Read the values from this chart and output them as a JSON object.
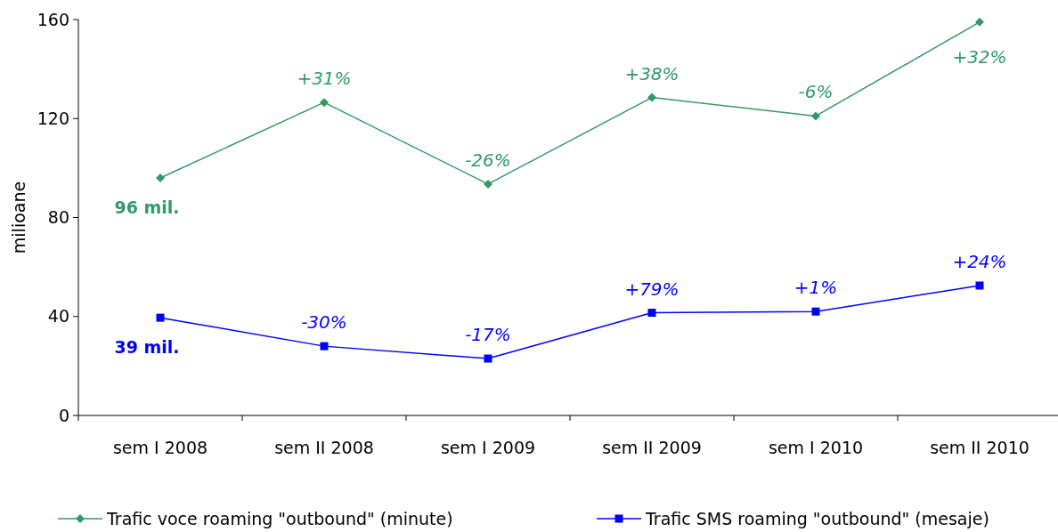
{
  "chart_data": {
    "type": "line",
    "ylabel": "milioane",
    "categories": [
      "sem I 2008",
      "sem II 2008",
      "sem I 2009",
      "sem II 2009",
      "sem I 2010",
      "sem II 2010"
    ],
    "ylim": [
      0,
      160
    ],
    "yticks": [
      0,
      40,
      80,
      120,
      160
    ],
    "legend": "bottom",
    "grid": false,
    "series": [
      {
        "name": "Trafic voce roaming \"outbound\" (minute)",
        "color": "#339966",
        "marker": "diamond",
        "values": [
          96,
          126.5,
          93.5,
          128.5,
          121,
          159
        ]
      },
      {
        "name": "Trafic SMS roaming \"outbound\" (mesaje)",
        "color": "#0000ff",
        "marker": "square",
        "values": [
          39.5,
          28,
          23,
          41.5,
          42,
          52.5
        ]
      }
    ],
    "annotations": [
      {
        "text": "96 mil.",
        "x": "sem I 2008",
        "y": 96
      },
      {
        "text": "+31%",
        "x": "sem II 2008",
        "y": 126.5
      },
      {
        "text": "-26%",
        "x": "sem I 2009",
        "y": 93.5
      },
      {
        "text": "+38%",
        "x": "sem II 2009",
        "y": 128.5
      },
      {
        "text": "-6%",
        "x": "sem I 2010",
        "y": 121
      },
      {
        "text": "+32%",
        "x": "sem II 2010",
        "y": 159
      },
      {
        "text": "39 mil.",
        "x": "sem I 2008",
        "y": 39.5
      },
      {
        "text": "-30%",
        "x": "sem II 2008",
        "y": 28
      },
      {
        "text": "-17%",
        "x": "sem I 2009",
        "y": 23
      },
      {
        "text": "+79%",
        "x": "sem II 2009",
        "y": 41.5
      },
      {
        "text": "+1%",
        "x": "sem I 2010",
        "y": 42
      },
      {
        "text": "+24%",
        "x": "sem II 2010",
        "y": 52.5
      }
    ]
  }
}
